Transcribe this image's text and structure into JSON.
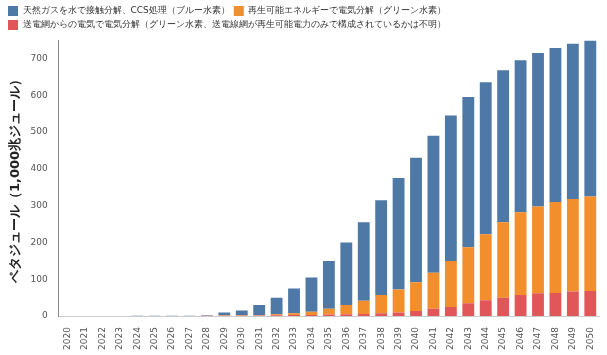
{
  "chart_data": {
    "type": "bar",
    "stacked": true,
    "y_label": "ペタジュール（1,000兆ジュール）",
    "categories": [
      "2020",
      "2021",
      "2022",
      "2023",
      "2024",
      "2025",
      "2026",
      "2027",
      "2028",
      "2029",
      "2030",
      "2031",
      "2032",
      "2033",
      "2034",
      "2035",
      "2036",
      "2037",
      "2038",
      "2039",
      "2040",
      "2041",
      "2042",
      "2043",
      "2044",
      "2045",
      "2046",
      "2047",
      "2048",
      "2049",
      "2050"
    ],
    "series": [
      {
        "name": "天然ガスを水で接触分解、CCS処理（ブルー水素）",
        "color": "#4e79a7",
        "values": [
          0,
          0,
          0,
          0,
          1,
          1,
          1,
          1,
          1,
          8,
          13,
          28,
          45,
          67,
          93,
          130,
          170,
          213,
          258,
          303,
          338,
          372,
          395,
          408,
          413,
          413,
          413,
          417,
          418,
          422,
          423
        ]
      },
      {
        "name": "再生可能エネルギーで電気分解（グリーン水素）",
        "color": "#f28e2b",
        "values": [
          0,
          0,
          0,
          0,
          0,
          0,
          0,
          0,
          0,
          1,
          1,
          1,
          3,
          5,
          9,
          16,
          25,
          36,
          49,
          62,
          78,
          98,
          125,
          152,
          179,
          205,
          225,
          236,
          247,
          251,
          257
        ]
      },
      {
        "name": "送電網からの電気で電気分解（グリーン水素、送電線網が再生可能電力のみで構成されているかは不明）",
        "color": "#e15759",
        "values": [
          0,
          0,
          0,
          0,
          0,
          0,
          0,
          0,
          1,
          1,
          1,
          1,
          2,
          3,
          3,
          4,
          5,
          6,
          8,
          10,
          14,
          20,
          25,
          35,
          43,
          50,
          57,
          62,
          63,
          67,
          68
        ]
      }
    ],
    "ylim": [
      0,
      750
    ],
    "yticks": [
      0,
      100,
      200,
      300,
      400,
      500,
      600,
      700
    ],
    "grid": false,
    "legend": "top-left"
  }
}
